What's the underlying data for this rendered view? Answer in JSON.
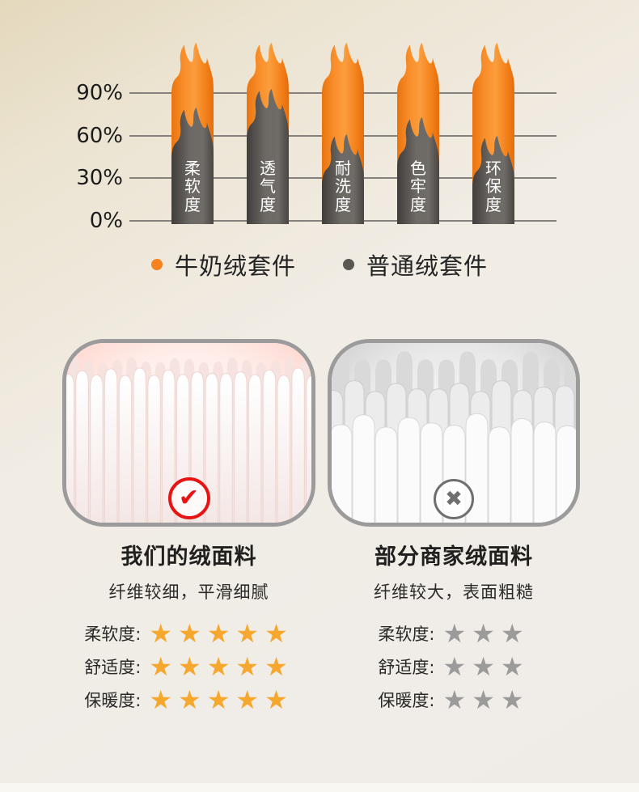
{
  "chart_data": {
    "type": "bar",
    "categories": [
      "柔软度",
      "透气度",
      "耐洗度",
      "色牢度",
      "环保度"
    ],
    "series": [
      {
        "name": "牛奶绒套件",
        "color": "#f5831f",
        "values": [
          98,
          98,
          98,
          98,
          98
        ]
      },
      {
        "name": "普通绒套件",
        "color": "#5a5651",
        "values": [
          65,
          78,
          46,
          58,
          45
        ]
      }
    ],
    "yticks": [
      90,
      60,
      30,
      0
    ],
    "ytick_labels": [
      "90%",
      "60%",
      "30%",
      "0%"
    ],
    "ylim": [
      0,
      100
    ],
    "grid": true,
    "bar_style": "flame-column",
    "bar_label_color": "#ffffff",
    "legend_position": "below"
  },
  "comparison": {
    "left": {
      "title": "我们的绒面料",
      "subtitle": "纤维较细，平滑细腻",
      "badge": "check",
      "badge_color": "#e81414",
      "star_color": "#f6a72e",
      "ratings": [
        {
          "label": "柔软度:",
          "stars": 5
        },
        {
          "label": "舒适度:",
          "stars": 5
        },
        {
          "label": "保暖度:",
          "stars": 5
        }
      ]
    },
    "right": {
      "title": "部分商家绒面料",
      "subtitle": "纤维较大，表面粗糙",
      "badge": "cross",
      "badge_color": "#6f6f6f",
      "star_color": "#9b9b9b",
      "ratings": [
        {
          "label": "柔软度:",
          "stars": 3
        },
        {
          "label": "舒适度:",
          "stars": 3
        },
        {
          "label": "保暖度:",
          "stars": 3
        }
      ]
    }
  },
  "icons": {
    "check": "✔",
    "cross": "✖",
    "star": "★"
  },
  "colors": {
    "background_top_left": "#e4d9bd",
    "background_main": "#f0ece6",
    "card_border": "#9b9b9b",
    "gridline": "#85827d",
    "text_dark": "#222222",
    "bottom_strip": "#f8f7f2"
  }
}
